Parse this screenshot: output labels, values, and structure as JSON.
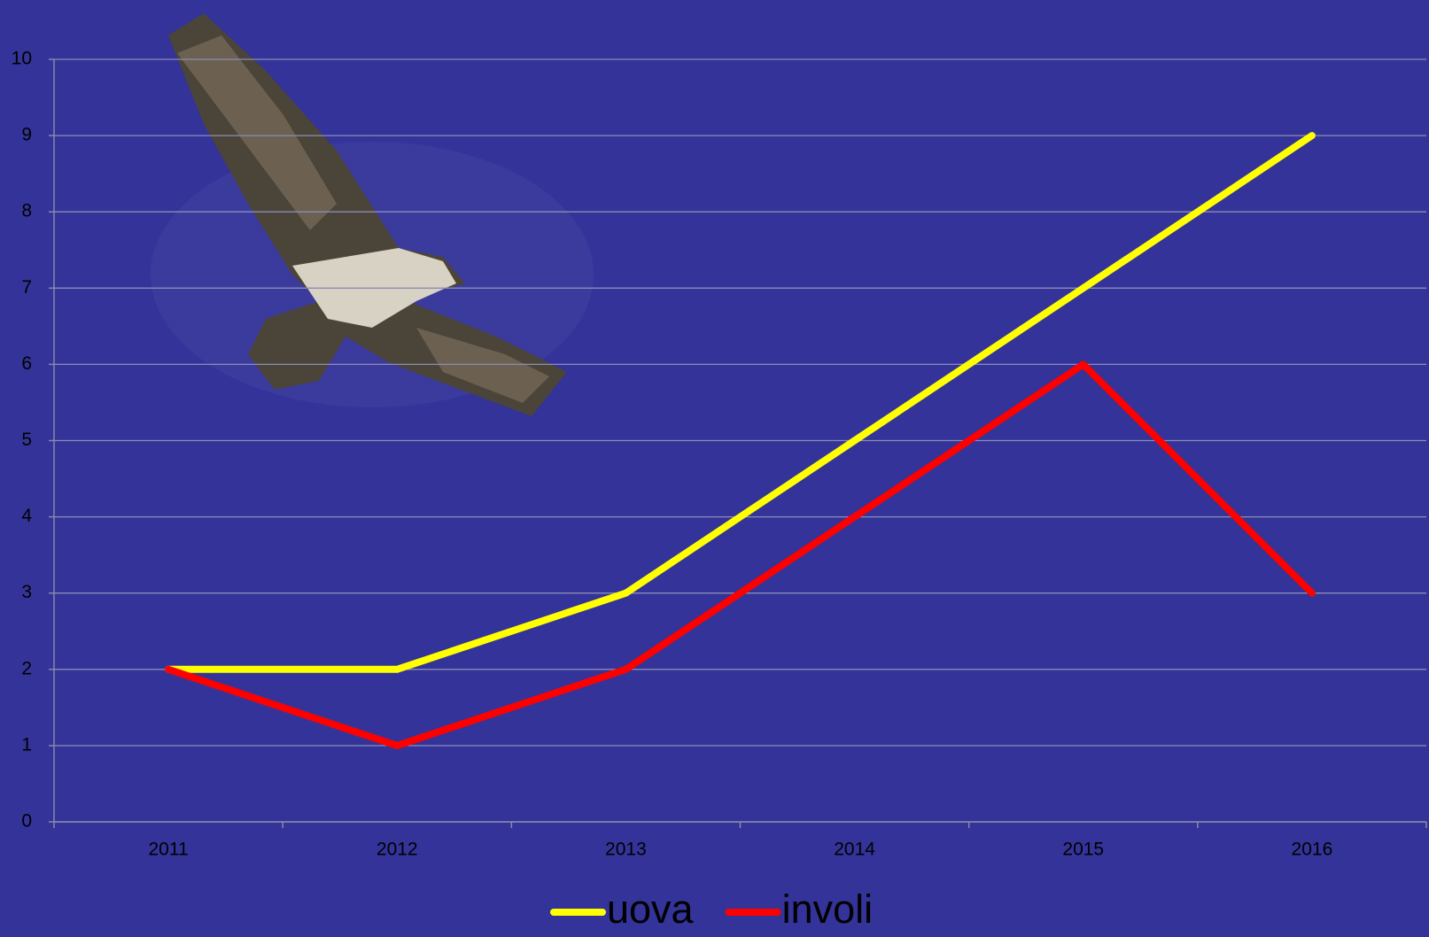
{
  "chart_data": {
    "type": "line",
    "categories": [
      "2011",
      "2012",
      "2013",
      "2014",
      "2015",
      "2016"
    ],
    "series": [
      {
        "name": "uova",
        "color": "#ffff00",
        "values": [
          2,
          2,
          3,
          5,
          7,
          9
        ]
      },
      {
        "name": "involi",
        "color": "#ff0000",
        "values": [
          2,
          1,
          2,
          4,
          6,
          3
        ]
      }
    ],
    "ylim": [
      0,
      10
    ],
    "yticks": [
      0,
      1,
      2,
      3,
      4,
      5,
      6,
      7,
      8,
      9,
      10
    ],
    "grid": true,
    "legend": "bottom"
  }
}
